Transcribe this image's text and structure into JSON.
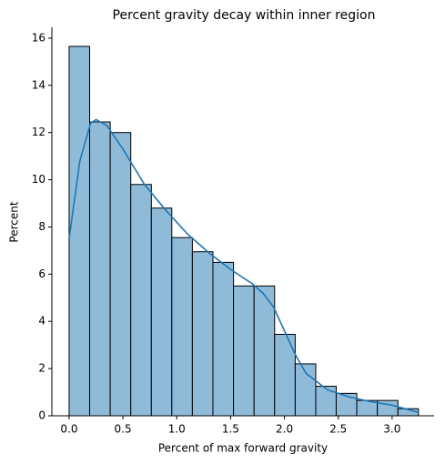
{
  "chart_data": {
    "type": "histogram",
    "title": "Percent gravity decay within inner region",
    "x_label": "Percent of max forward gravity",
    "y_label": "Percent",
    "bins": [
      0,
      0.191,
      0.382,
      0.573,
      0.764,
      0.954,
      1.145,
      1.336,
      1.527,
      1.718,
      1.909,
      2.1,
      2.291,
      2.481,
      2.672,
      2.863,
      3.054,
      3.245
    ],
    "values": [
      15.65,
      12.45,
      12.0,
      9.8,
      8.8,
      7.55,
      6.95,
      6.5,
      5.5,
      5.5,
      3.45,
      2.2,
      1.25,
      0.95,
      0.65,
      0.65,
      0.3
    ],
    "color": "#8fbbd9",
    "edgecolor": "#000000",
    "kde": {
      "color": "#1f77b4",
      "x": [
        0,
        0.1,
        0.2,
        0.25,
        0.35,
        0.5,
        0.7,
        0.9,
        1.1,
        1.3,
        1.5,
        1.7,
        1.8,
        1.9,
        2.0,
        2.1,
        2.2,
        2.4,
        2.6,
        2.8,
        3.0,
        3.2,
        3.245
      ],
      "values": [
        7.5,
        10.8,
        12.4,
        12.55,
        12.3,
        11.3,
        9.8,
        8.7,
        7.7,
        6.9,
        6.2,
        5.6,
        5.2,
        4.6,
        3.6,
        2.6,
        1.8,
        1.1,
        0.8,
        0.6,
        0.45,
        0.2,
        0.15
      ]
    },
    "xlim": [
      -0.16,
      3.39
    ],
    "ylim": [
      0,
      16.46
    ],
    "xticks": [
      {
        "value": 0,
        "label": "0.0"
      },
      0.5,
      {
        "value": 1,
        "label": "1.0"
      },
      1.5,
      {
        "value": 2,
        "label": "2.0"
      },
      2.5,
      {
        "value": 3,
        "label": "3.0"
      }
    ],
    "yticks": [
      0,
      2,
      4,
      6,
      8,
      10,
      12,
      14,
      16
    ]
  }
}
